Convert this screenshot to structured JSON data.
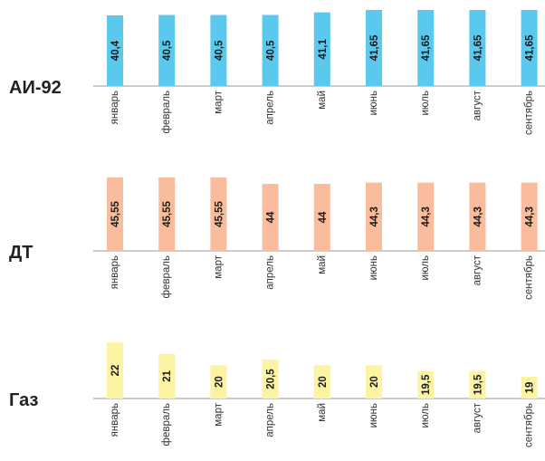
{
  "chart_data": [
    {
      "type": "bar",
      "title": "АИ-92",
      "categories": [
        "январь",
        "февраль",
        "март",
        "апрель",
        "май",
        "июнь",
        "июль",
        "август",
        "сентябрь"
      ],
      "values": [
        40.4,
        40.5,
        40.5,
        40.5,
        41.1,
        41.65,
        41.65,
        41.65,
        41.65
      ],
      "data_labels": [
        "40,4",
        "40,5",
        "40,5",
        "40,5",
        "41,1",
        "41,65",
        "41,65",
        "41,65",
        "41,65"
      ],
      "color": "#5BC8EE",
      "grid": false
    },
    {
      "type": "bar",
      "title": "ДТ",
      "categories": [
        "январь",
        "февраль",
        "март",
        "апрель",
        "май",
        "июнь",
        "июль",
        "август",
        "сентябрь"
      ],
      "values": [
        45.55,
        45.55,
        45.55,
        44,
        44,
        44.3,
        44.3,
        44.3,
        44.3
      ],
      "data_labels": [
        "45,55",
        "45,55",
        "45,55",
        "44",
        "44",
        "44,3",
        "44,3",
        "44,3",
        "44,3"
      ],
      "color": "#F9BC9C",
      "grid": false
    },
    {
      "type": "bar",
      "title": "Газ",
      "categories": [
        "январь",
        "февраль",
        "март",
        "апрель",
        "май",
        "июнь",
        "июль",
        "август",
        "сентябрь"
      ],
      "values": [
        22,
        21,
        20,
        20.5,
        20,
        20,
        19.5,
        19.5,
        19
      ],
      "data_labels": [
        "22",
        "21",
        "20",
        "20,5",
        "20",
        "20",
        "19,5",
        "19,5",
        "19"
      ],
      "color": "#FCF3A3",
      "grid": false
    }
  ]
}
